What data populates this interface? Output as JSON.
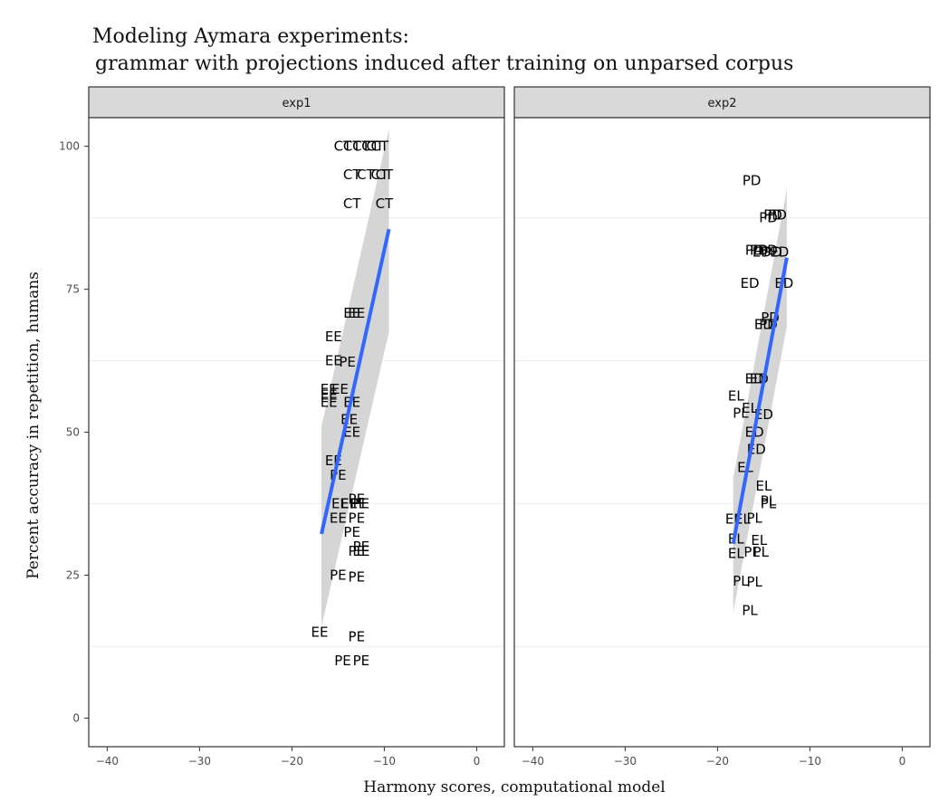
{
  "chart_data": {
    "type": "scatter",
    "title": "Modeling Aymara experiments:",
    "subtitle": " grammar with projections induced after training on unparsed corpus",
    "xlabel": "Harmony scores, computational model",
    "ylabel": "Percent accuracy in repetition, humans",
    "xlim": [
      -42,
      3
    ],
    "ylim": [
      -5,
      105
    ],
    "x_ticks": [
      -40,
      -30,
      -20,
      -10,
      0
    ],
    "y_ticks": [
      0,
      25,
      50,
      75,
      100
    ],
    "grid": true,
    "point_style": "text labels",
    "smooth": {
      "method": "linear regression",
      "color": "#3366FF",
      "ribbon_color": "#d3d3d3"
    },
    "panels": [
      {
        "name": "exp1",
        "points": [
          {
            "label": "CT",
            "x": -14.5,
            "y": 100
          },
          {
            "label": "CT",
            "x": -13.5,
            "y": 100
          },
          {
            "label": "CT",
            "x": -12.5,
            "y": 100
          },
          {
            "label": "CT",
            "x": -11.5,
            "y": 100
          },
          {
            "label": "CT",
            "x": -11,
            "y": 100
          },
          {
            "label": "CT",
            "x": -10.5,
            "y": 100
          },
          {
            "label": "CT",
            "x": -13.5,
            "y": 95
          },
          {
            "label": "CT",
            "x": -12,
            "y": 95
          },
          {
            "label": "CT",
            "x": -10.5,
            "y": 95
          },
          {
            "label": "CT",
            "x": -10,
            "y": 95
          },
          {
            "label": "CT",
            "x": -13.5,
            "y": 90
          },
          {
            "label": "CT",
            "x": -10,
            "y": 90
          },
          {
            "label": "EE",
            "x": -13.5,
            "y": 70.8
          },
          {
            "label": "EE",
            "x": -13,
            "y": 70.8
          },
          {
            "label": "EE",
            "x": -15.5,
            "y": 66.7
          },
          {
            "label": "EE",
            "x": -15.5,
            "y": 62.5
          },
          {
            "label": "PE",
            "x": -14,
            "y": 62.3
          },
          {
            "label": "EE",
            "x": -16,
            "y": 57.5
          },
          {
            "label": "EE",
            "x": -14.8,
            "y": 57.5
          },
          {
            "label": "EE",
            "x": -16,
            "y": 56.5
          },
          {
            "label": "EE",
            "x": -16,
            "y": 55.2
          },
          {
            "label": "EE",
            "x": -13.5,
            "y": 55.2
          },
          {
            "label": "EE",
            "x": -13.8,
            "y": 52.2
          },
          {
            "label": "EE",
            "x": -13.5,
            "y": 50
          },
          {
            "label": "EE",
            "x": -15.5,
            "y": 45
          },
          {
            "label": "PE",
            "x": -15,
            "y": 42.5
          },
          {
            "label": "PE",
            "x": -13,
            "y": 38.3
          },
          {
            "label": "EE",
            "x": -14.8,
            "y": 37.5
          },
          {
            "label": "EE",
            "x": -13.8,
            "y": 37.5
          },
          {
            "label": "PE",
            "x": -12.8,
            "y": 37.5
          },
          {
            "label": "PE",
            "x": -12.5,
            "y": 37.5
          },
          {
            "label": "EE",
            "x": -15,
            "y": 35
          },
          {
            "label": "PE",
            "x": -13,
            "y": 35
          },
          {
            "label": "PE",
            "x": -13.5,
            "y": 32.5
          },
          {
            "label": "PE",
            "x": -12.5,
            "y": 30
          },
          {
            "label": "PE",
            "x": -13,
            "y": 29.2
          },
          {
            "label": "EE",
            "x": -12.5,
            "y": 29.2
          },
          {
            "label": "PE",
            "x": -15,
            "y": 25
          },
          {
            "label": "PE",
            "x": -13,
            "y": 24.7
          },
          {
            "label": "EE",
            "x": -17,
            "y": 15
          },
          {
            "label": "PE",
            "x": -13,
            "y": 14.2
          },
          {
            "label": "PE",
            "x": -14.5,
            "y": 10
          },
          {
            "label": "PE",
            "x": -12.5,
            "y": 10
          }
        ],
        "fit": {
          "x": [
            -16.8,
            -9.5
          ],
          "y": [
            32.2,
            85.5
          ]
        },
        "ribbon": {
          "x": [
            -16.8,
            -9.5
          ],
          "lower": [
            16,
            67.5
          ],
          "upper": [
            51,
            103
          ]
        }
      },
      {
        "name": "exp2",
        "points": [
          {
            "label": "PD",
            "x": -16.3,
            "y": 94
          },
          {
            "label": "PD",
            "x": -14.5,
            "y": 87.5
          },
          {
            "label": "PD",
            "x": -14,
            "y": 88
          },
          {
            "label": "PD",
            "x": -13.5,
            "y": 88
          },
          {
            "label": "PD",
            "x": -16,
            "y": 81.8
          },
          {
            "label": "PD",
            "x": -15.5,
            "y": 81.8
          },
          {
            "label": "ED",
            "x": -15.2,
            "y": 81.5
          },
          {
            "label": "PD",
            "x": -14.5,
            "y": 81.8
          },
          {
            "label": "PD",
            "x": -14,
            "y": 81.5
          },
          {
            "label": "ED",
            "x": -13.3,
            "y": 81.5
          },
          {
            "label": "ED",
            "x": -16.5,
            "y": 76
          },
          {
            "label": "ED",
            "x": -12.8,
            "y": 76
          },
          {
            "label": "PD",
            "x": -14.3,
            "y": 70
          },
          {
            "label": "ED",
            "x": -15,
            "y": 68.8
          },
          {
            "label": "PD",
            "x": -14.5,
            "y": 68.8
          },
          {
            "label": "ED",
            "x": -16,
            "y": 59.3
          },
          {
            "label": "ED",
            "x": -15.5,
            "y": 59.3
          },
          {
            "label": "EL",
            "x": -18,
            "y": 56.3
          },
          {
            "label": "EL",
            "x": -16.5,
            "y": 54.2
          },
          {
            "label": "PL",
            "x": -17.5,
            "y": 53.3
          },
          {
            "label": "ED",
            "x": -15,
            "y": 53.1
          },
          {
            "label": "ED",
            "x": -16,
            "y": 50
          },
          {
            "label": "ED",
            "x": -15.8,
            "y": 47
          },
          {
            "label": "EL",
            "x": -17,
            "y": 43.8
          },
          {
            "label": "EL",
            "x": -15,
            "y": 40.6
          },
          {
            "label": "PL",
            "x": -14.5,
            "y": 38
          },
          {
            "label": "PL",
            "x": -14.5,
            "y": 37.5
          },
          {
            "label": "EL",
            "x": -18.3,
            "y": 34.8
          },
          {
            "label": "EL",
            "x": -17.3,
            "y": 34.8
          },
          {
            "label": "PL",
            "x": -16,
            "y": 35
          },
          {
            "label": "EL",
            "x": -18,
            "y": 31.3
          },
          {
            "label": "EL",
            "x": -15.5,
            "y": 31.1
          },
          {
            "label": "EL",
            "x": -18,
            "y": 28.8
          },
          {
            "label": "PL",
            "x": -16.3,
            "y": 29
          },
          {
            "label": "PL",
            "x": -15.3,
            "y": 29
          },
          {
            "label": "PL",
            "x": -17.5,
            "y": 24
          },
          {
            "label": "PL",
            "x": -16,
            "y": 23.8
          },
          {
            "label": "PL",
            "x": -16.5,
            "y": 18.8
          }
        ],
        "fit": {
          "x": [
            -18.3,
            -12.5
          ],
          "y": [
            30.5,
            80.5
          ]
        },
        "ribbon": {
          "x": [
            -18.3,
            -12.5
          ],
          "lower": [
            18.5,
            68.5
          ],
          "upper": [
            42,
            92.5
          ]
        }
      }
    ]
  }
}
